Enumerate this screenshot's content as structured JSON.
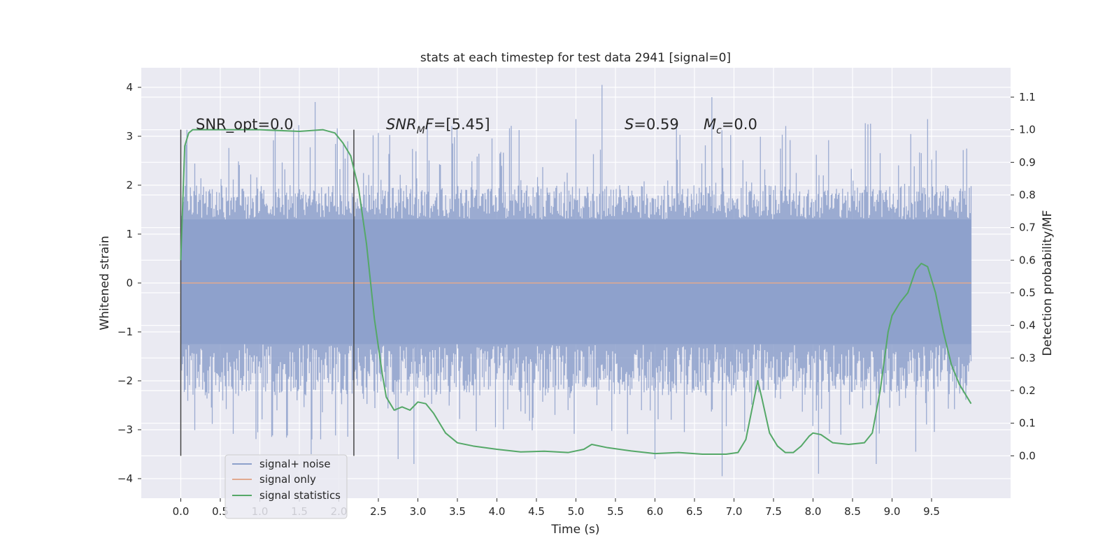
{
  "chart_data": {
    "type": "line",
    "title": "stats at each timestep for test data 2941 [signal=0]",
    "xlabel": "Time (s)",
    "ylabel": "Whitened strain",
    "y2label": "Detection probability/MF",
    "xlim": [
      -0.5,
      10.5
    ],
    "ylim": [
      -4.4,
      4.4
    ],
    "y2lim": [
      -0.13,
      1.19
    ],
    "grid": true,
    "legend_position": "lower-left",
    "x_ticks": [
      "0.0",
      "0.5",
      "1.0",
      "1.5",
      "2.0",
      "2.5",
      "3.0",
      "3.5",
      "4.0",
      "4.5",
      "5.0",
      "5.5",
      "6.0",
      "6.5",
      "7.0",
      "7.5",
      "8.0",
      "8.5",
      "9.0",
      "9.5"
    ],
    "y_ticks": [
      "−4",
      "−3",
      "−2",
      "−1",
      "0",
      "1",
      "2",
      "3",
      "4"
    ],
    "y2_ticks": [
      "0.0",
      "0.1",
      "0.2",
      "0.3",
      "0.4",
      "0.5",
      "0.6",
      "0.7",
      "0.8",
      "0.9",
      "1.0",
      "1.1"
    ],
    "vlines": [
      0.0,
      2.19
    ],
    "annotations": {
      "snr_opt": "SNR_opt=0.0",
      "snr_mf": "=[5.45]",
      "s_value": "=0.59",
      "mc_value": "=0.0"
    },
    "series": [
      {
        "name": "signal+ noise",
        "color": "#8da0cb",
        "axis": "left",
        "x_range": [
          0.0,
          10.0
        ],
        "band_low": -1.25,
        "band_high": 1.3,
        "typical_min": -2.3,
        "typical_max": 2.0,
        "extreme_min": -3.95,
        "extreme_max": 4.05
      },
      {
        "name": "signal only",
        "color": "#e1a98f",
        "axis": "left",
        "x": [
          0.0,
          10.0
        ],
        "y": [
          0.0,
          0.0
        ]
      },
      {
        "name": "signal statistics",
        "color": "#55a868",
        "axis": "right",
        "x": [
          0.0,
          0.05,
          0.1,
          0.15,
          0.25,
          0.5,
          1.0,
          1.5,
          1.8,
          1.95,
          2.05,
          2.15,
          2.25,
          2.35,
          2.45,
          2.55,
          2.6,
          2.65,
          2.7,
          2.8,
          2.9,
          3.0,
          3.1,
          3.2,
          3.35,
          3.5,
          3.7,
          4.0,
          4.3,
          4.6,
          4.9,
          5.1,
          5.2,
          5.4,
          5.7,
          6.0,
          6.3,
          6.6,
          6.9,
          7.05,
          7.15,
          7.25,
          7.3,
          7.35,
          7.45,
          7.55,
          7.65,
          7.75,
          7.85,
          7.95,
          8.0,
          8.1,
          8.25,
          8.45,
          8.65,
          8.75,
          8.85,
          8.95,
          9.0,
          9.1,
          9.2,
          9.3,
          9.37,
          9.45,
          9.55,
          9.65,
          9.75,
          9.85,
          10.0
        ],
        "y": [
          0.6,
          0.95,
          0.99,
          1.0,
          1.0,
          1.0,
          1.0,
          0.995,
          1.0,
          0.99,
          0.96,
          0.92,
          0.82,
          0.65,
          0.42,
          0.25,
          0.18,
          0.16,
          0.14,
          0.15,
          0.14,
          0.165,
          0.16,
          0.13,
          0.07,
          0.04,
          0.03,
          0.02,
          0.012,
          0.014,
          0.01,
          0.02,
          0.035,
          0.025,
          0.015,
          0.007,
          0.01,
          0.005,
          0.005,
          0.01,
          0.05,
          0.17,
          0.23,
          0.18,
          0.07,
          0.03,
          0.01,
          0.01,
          0.03,
          0.06,
          0.07,
          0.065,
          0.04,
          0.035,
          0.04,
          0.07,
          0.2,
          0.38,
          0.43,
          0.47,
          0.5,
          0.57,
          0.59,
          0.58,
          0.5,
          0.38,
          0.28,
          0.22,
          0.16
        ]
      }
    ]
  }
}
